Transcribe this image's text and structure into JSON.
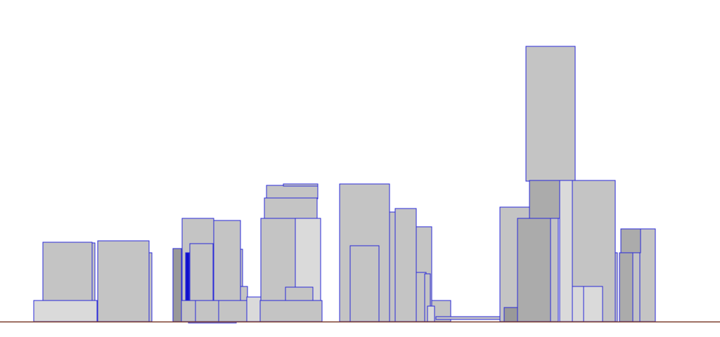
{
  "scene": {
    "colors": {
      "background": "#ffffff",
      "outline": "#2a2ad8",
      "ground": "#7a3a2a",
      "building_mid": "#c4c4c4",
      "building_light": "#dadada",
      "building_dark": "#ababab",
      "building_darker": "#999999",
      "accent_blue": "#1010cc"
    }
  }
}
